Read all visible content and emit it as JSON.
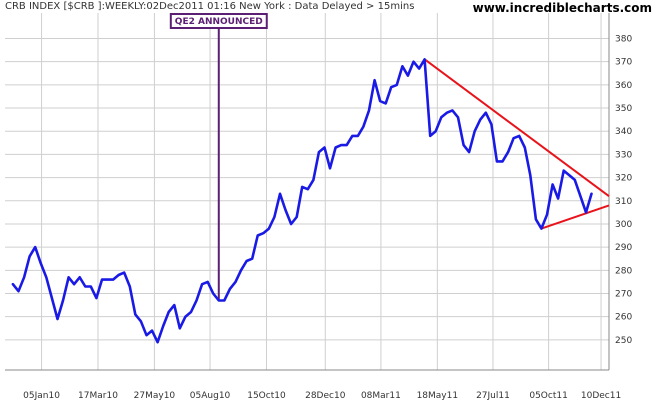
{
  "header": {
    "left_text": "CRB INDEX [$CRB ]:WEEKLY:02Dec2011 01:16 New York  : Data Delayed > 15mins",
    "brand": "www.incrediblecharts.com"
  },
  "colors": {
    "price_line": "#1a1ae6",
    "trendline": "#e8131b",
    "annotation": "#5b1f73",
    "grid": "#cfcfcf",
    "frame": "#888888"
  },
  "chart_data": {
    "type": "line",
    "title": "CRB INDEX [$CRB ]:WEEKLY",
    "xlabel": "",
    "ylabel": "",
    "ylim": [
      237,
      391
    ],
    "yticks": [
      250,
      260,
      270,
      280,
      290,
      300,
      310,
      320,
      330,
      340,
      350,
      360,
      370,
      380
    ],
    "y_axis_side": "right",
    "grid": true,
    "x_ticks": [
      {
        "label": "05Jan10",
        "date": "2010-01-05"
      },
      {
        "label": "17Mar10",
        "date": "2010-03-17"
      },
      {
        "label": "27May10",
        "date": "2010-05-27"
      },
      {
        "label": "05Aug10",
        "date": "2010-08-05"
      },
      {
        "label": "15Oct10",
        "date": "2010-10-15"
      },
      {
        "label": "28Dec10",
        "date": "2010-12-28"
      },
      {
        "label": "08Mar11",
        "date": "2011-03-08"
      },
      {
        "label": "18May11",
        "date": "2011-05-18"
      },
      {
        "label": "27Jul11",
        "date": "2011-07-27"
      },
      {
        "label": "05Oct11",
        "date": "2011-10-05"
      },
      {
        "label": "10Dec11",
        "date": "2011-12-10"
      }
    ],
    "series": [
      {
        "name": "CRB INDEX",
        "x": [
          "2009-11-30",
          "2009-12-07",
          "2009-12-14",
          "2009-12-21",
          "2009-12-28",
          "2010-01-04",
          "2010-01-11",
          "2010-01-18",
          "2010-01-25",
          "2010-02-01",
          "2010-02-08",
          "2010-02-15",
          "2010-02-22",
          "2010-03-01",
          "2010-03-08",
          "2010-03-15",
          "2010-03-22",
          "2010-03-29",
          "2010-04-05",
          "2010-04-12",
          "2010-04-19",
          "2010-04-26",
          "2010-05-03",
          "2010-05-10",
          "2010-05-17",
          "2010-05-24",
          "2010-05-31",
          "2010-06-07",
          "2010-06-14",
          "2010-06-21",
          "2010-06-28",
          "2010-07-05",
          "2010-07-12",
          "2010-07-19",
          "2010-07-26",
          "2010-08-02",
          "2010-08-09",
          "2010-08-16",
          "2010-08-23",
          "2010-08-30",
          "2010-09-06",
          "2010-09-13",
          "2010-09-20",
          "2010-09-27",
          "2010-10-04",
          "2010-10-11",
          "2010-10-18",
          "2010-10-25",
          "2010-11-01",
          "2010-11-08",
          "2010-11-15",
          "2010-11-22",
          "2010-11-29",
          "2010-12-06",
          "2010-12-13",
          "2010-12-20",
          "2010-12-27",
          "2011-01-03",
          "2011-01-10",
          "2011-01-17",
          "2011-01-24",
          "2011-01-31",
          "2011-02-07",
          "2011-02-14",
          "2011-02-21",
          "2011-02-28",
          "2011-03-07",
          "2011-03-14",
          "2011-03-21",
          "2011-03-28",
          "2011-04-04",
          "2011-04-11",
          "2011-04-18",
          "2011-04-25",
          "2011-05-02",
          "2011-05-09",
          "2011-05-16",
          "2011-05-23",
          "2011-05-30",
          "2011-06-06",
          "2011-06-13",
          "2011-06-20",
          "2011-06-27",
          "2011-07-04",
          "2011-07-11",
          "2011-07-18",
          "2011-07-25",
          "2011-08-01",
          "2011-08-08",
          "2011-08-15",
          "2011-08-22",
          "2011-08-29",
          "2011-09-05",
          "2011-09-12",
          "2011-09-19",
          "2011-09-26",
          "2011-10-03",
          "2011-10-10",
          "2011-10-17",
          "2011-10-24",
          "2011-10-31",
          "2011-11-07",
          "2011-11-14",
          "2011-11-21",
          "2011-11-28"
        ],
        "values": [
          274,
          271,
          277,
          286,
          290,
          283,
          277,
          268,
          259,
          267,
          277,
          274,
          277,
          273,
          273,
          268,
          276,
          276,
          276,
          278,
          279,
          273,
          261,
          258,
          252,
          254,
          249,
          256,
          262,
          265,
          255,
          260,
          262,
          267,
          274,
          275,
          270,
          267,
          267,
          272,
          275,
          280,
          284,
          285,
          295,
          296,
          298,
          303,
          313,
          306,
          300,
          303,
          316,
          315,
          319,
          331,
          333,
          324,
          333,
          334,
          334,
          338,
          338,
          342,
          349,
          362,
          353,
          352,
          359,
          360,
          368,
          364,
          370,
          367,
          371,
          338,
          340,
          346,
          348,
          349,
          346,
          334,
          331,
          340,
          345,
          348,
          343,
          327,
          327,
          331,
          337,
          338,
          333,
          321,
          302,
          298,
          304,
          317,
          311,
          323,
          321,
          319,
          312,
          305,
          313
        ]
      }
    ],
    "trendlines": [
      {
        "from": {
          "x": "2011-05-02",
          "y": 371
        },
        "to": {
          "x": "2011-12-20",
          "y": 312
        }
      },
      {
        "from": {
          "x": "2011-09-26",
          "y": 298
        },
        "to": {
          "x": "2011-12-20",
          "y": 308
        }
      }
    ],
    "annotations": [
      {
        "label": "QE2 ANNOUNCED",
        "x": "2010-08-16",
        "y": 267
      }
    ]
  }
}
